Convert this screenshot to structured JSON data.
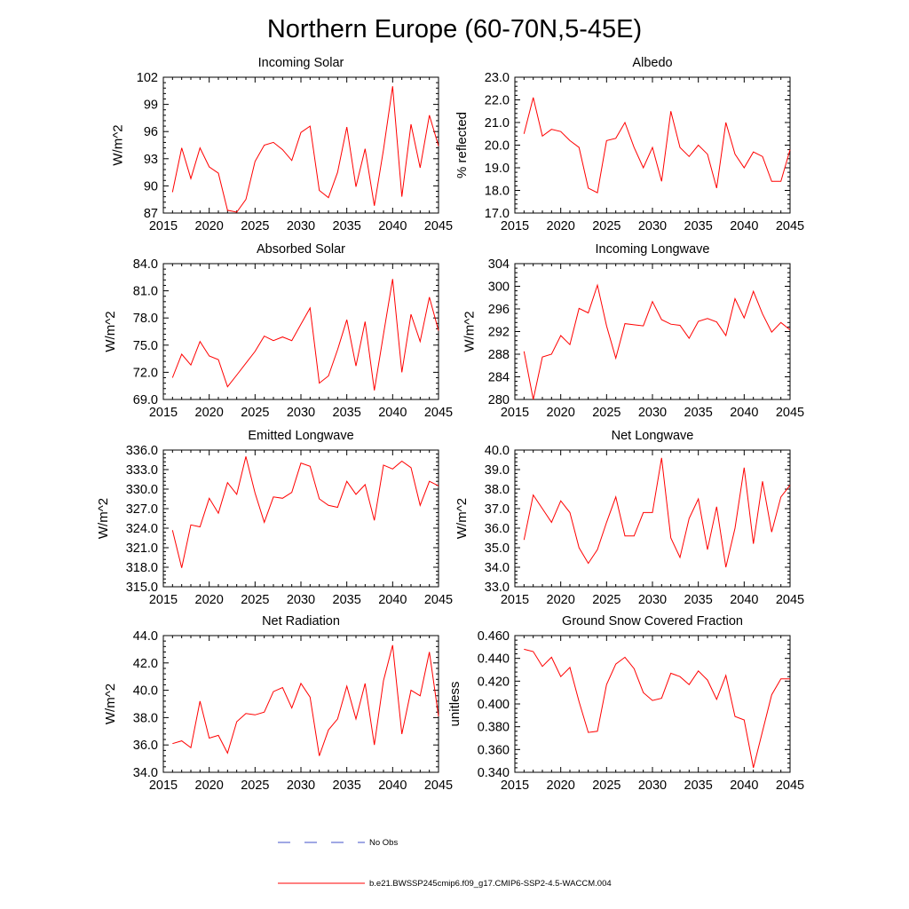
{
  "figure": {
    "title": "Northern Europe (60-70N,5-45E)",
    "series_color": "#ff0000",
    "obs_color": "#4050c8"
  },
  "legend": {
    "entries": [
      {
        "label": "No Obs",
        "style": "dashed",
        "color": "#4050c8"
      },
      {
        "label": "b.e21.BWSSP245cmip6.f09_g17.CMIP6-SSP2-4.5-WACCM.004",
        "style": "solid",
        "color": "#ff0000"
      }
    ]
  },
  "chart_data": [
    {
      "type": "line",
      "title": "Incoming Solar",
      "ylabel": "W/m^2",
      "xlim": [
        2015,
        2045
      ],
      "ylim": [
        87,
        102
      ],
      "yticks": [
        "87",
        "90",
        "93",
        "96",
        "99",
        "102"
      ],
      "xticks": [
        "2015",
        "2020",
        "2025",
        "2030",
        "2035",
        "2040",
        "2045"
      ],
      "series": [
        {
          "name": "b.e21.BWSSP245cmip6.f09_g17.CMIP6-SSP2-4.5-WACCM.004",
          "x": [
            2016,
            2017,
            2018,
            2019,
            2020,
            2021,
            2022,
            2023,
            2024,
            2025,
            2026,
            2027,
            2028,
            2029,
            2030,
            2031,
            2032,
            2033,
            2034,
            2035,
            2036,
            2037,
            2038,
            2039,
            2040,
            2041,
            2042,
            2043,
            2044,
            2045
          ],
          "values": [
            89.3,
            94.2,
            90.8,
            94.2,
            92.1,
            91.4,
            87.3,
            87.1,
            88.5,
            92.7,
            94.5,
            94.8,
            94.0,
            92.8,
            95.9,
            96.6,
            89.5,
            88.7,
            91.5,
            96.5,
            89.9,
            94.1,
            87.8,
            94.0,
            101.0,
            88.8,
            96.8,
            92.0,
            97.8,
            94.4
          ]
        }
      ]
    },
    {
      "type": "line",
      "title": "Albedo",
      "ylabel": "% reflected",
      "xlim": [
        2015,
        2045
      ],
      "ylim": [
        17.0,
        23.0
      ],
      "yticks": [
        "17.0",
        "18.0",
        "19.0",
        "20.0",
        "21.0",
        "22.0",
        "23.0"
      ],
      "xticks": [
        "2015",
        "2020",
        "2025",
        "2030",
        "2035",
        "2040",
        "2045"
      ],
      "series": [
        {
          "name": "b.e21.BWSSP245cmip6.f09_g17.CMIP6-SSP2-4.5-WACCM.004",
          "x": [
            2016,
            2017,
            2018,
            2019,
            2020,
            2021,
            2022,
            2023,
            2024,
            2025,
            2026,
            2027,
            2028,
            2029,
            2030,
            2031,
            2032,
            2033,
            2034,
            2035,
            2036,
            2037,
            2038,
            2039,
            2040,
            2041,
            2042,
            2043,
            2044,
            2045
          ],
          "values": [
            20.5,
            22.1,
            20.4,
            20.7,
            20.6,
            20.2,
            19.9,
            18.1,
            17.9,
            20.2,
            20.3,
            21.0,
            19.9,
            19.0,
            19.9,
            18.4,
            21.5,
            19.9,
            19.5,
            20.0,
            19.6,
            18.1,
            21.0,
            19.6,
            19.0,
            19.7,
            19.5,
            18.4,
            18.4,
            19.8
          ]
        }
      ]
    },
    {
      "type": "line",
      "title": "Absorbed Solar",
      "ylabel": "W/m^2",
      "xlim": [
        2015,
        2045
      ],
      "ylim": [
        69.0,
        84.0
      ],
      "yticks": [
        "69.0",
        "72.0",
        "75.0",
        "78.0",
        "81.0",
        "84.0"
      ],
      "xticks": [
        "2015",
        "2020",
        "2025",
        "2030",
        "2035",
        "2040",
        "2045"
      ],
      "series": [
        {
          "name": "b.e21.BWSSP245cmip6.f09_g17.CMIP6-SSP2-4.5-WACCM.004",
          "x": [
            2016,
            2017,
            2018,
            2019,
            2020,
            2021,
            2022,
            2023,
            2024,
            2025,
            2026,
            2027,
            2028,
            2029,
            2030,
            2031,
            2032,
            2033,
            2034,
            2035,
            2036,
            2037,
            2038,
            2039,
            2040,
            2041,
            2042,
            2043,
            2044,
            2045
          ],
          "values": [
            71.4,
            74.0,
            72.8,
            75.4,
            73.8,
            73.4,
            70.4,
            71.7,
            73.0,
            74.3,
            76.0,
            75.5,
            75.9,
            75.5,
            77.3,
            79.1,
            70.8,
            71.6,
            74.5,
            77.8,
            72.7,
            77.6,
            70.0,
            76.2,
            82.3,
            72.0,
            78.4,
            75.4,
            80.3,
            76.6
          ]
        }
      ]
    },
    {
      "type": "line",
      "title": "Incoming Longwave",
      "ylabel": "W/m^2",
      "xlim": [
        2015,
        2045
      ],
      "ylim": [
        280,
        304
      ],
      "yticks": [
        "280",
        "284",
        "288",
        "292",
        "296",
        "300",
        "304"
      ],
      "xticks": [
        "2015",
        "2020",
        "2025",
        "2030",
        "2035",
        "2040",
        "2045"
      ],
      "series": [
        {
          "name": "b.e21.BWSSP245cmip6.f09_g17.CMIP6-SSP2-4.5-WACCM.004",
          "x": [
            2016,
            2017,
            2018,
            2019,
            2020,
            2021,
            2022,
            2023,
            2024,
            2025,
            2026,
            2027,
            2028,
            2029,
            2030,
            2031,
            2032,
            2033,
            2034,
            2035,
            2036,
            2037,
            2038,
            2039,
            2040,
            2041,
            2042,
            2043,
            2044,
            2045
          ],
          "values": [
            288.5,
            280.0,
            287.5,
            288.0,
            291.3,
            289.7,
            296.1,
            295.3,
            300.2,
            293.0,
            287.3,
            293.4,
            293.2,
            293.0,
            297.3,
            294.1,
            293.3,
            293.1,
            290.8,
            293.8,
            294.3,
            293.7,
            291.3,
            297.8,
            294.4,
            299.1,
            295.1,
            291.9,
            293.6,
            292.3
          ]
        }
      ]
    },
    {
      "type": "line",
      "title": "Emitted Longwave",
      "ylabel": "W/m^2",
      "xlim": [
        2015,
        2045
      ],
      "ylim": [
        315.0,
        336.0
      ],
      "yticks": [
        "315.0",
        "318.0",
        "321.0",
        "324.0",
        "327.0",
        "330.0",
        "333.0",
        "336.0"
      ],
      "xticks": [
        "2015",
        "2020",
        "2025",
        "2030",
        "2035",
        "2040",
        "2045"
      ],
      "series": [
        {
          "name": "b.e21.BWSSP245cmip6.f09_g17.CMIP6-SSP2-4.5-WACCM.004",
          "x": [
            2016,
            2017,
            2018,
            2019,
            2020,
            2021,
            2022,
            2023,
            2024,
            2025,
            2026,
            2027,
            2028,
            2029,
            2030,
            2031,
            2032,
            2033,
            2034,
            2035,
            2036,
            2037,
            2038,
            2039,
            2040,
            2041,
            2042,
            2043,
            2044,
            2045
          ],
          "values": [
            323.7,
            317.9,
            324.5,
            324.2,
            328.6,
            326.3,
            331.0,
            329.2,
            335.0,
            329.4,
            324.9,
            328.8,
            328.6,
            329.5,
            334.0,
            333.5,
            328.5,
            327.5,
            327.2,
            331.2,
            329.2,
            330.7,
            325.2,
            333.7,
            333.1,
            334.3,
            333.3,
            327.5,
            331.2,
            330.5
          ]
        }
      ]
    },
    {
      "type": "line",
      "title": "Net Longwave",
      "ylabel": "W/m^2",
      "xlim": [
        2015,
        2045
      ],
      "ylim": [
        33.0,
        40.0
      ],
      "yticks": [
        "33.0",
        "34.0",
        "35.0",
        "36.0",
        "37.0",
        "38.0",
        "39.0",
        "40.0"
      ],
      "xticks": [
        "2015",
        "2020",
        "2025",
        "2030",
        "2035",
        "2040",
        "2045"
      ],
      "series": [
        {
          "name": "b.e21.BWSSP245cmip6.f09_g17.CMIP6-SSP2-4.5-WACCM.004",
          "x": [
            2016,
            2017,
            2018,
            2019,
            2020,
            2021,
            2022,
            2023,
            2024,
            2025,
            2026,
            2027,
            2028,
            2029,
            2030,
            2031,
            2032,
            2033,
            2034,
            2035,
            2036,
            2037,
            2038,
            2039,
            2040,
            2041,
            2042,
            2043,
            2044,
            2045
          ],
          "values": [
            35.4,
            37.7,
            37.0,
            36.3,
            37.4,
            36.8,
            35.0,
            34.2,
            34.9,
            36.3,
            37.6,
            35.6,
            35.6,
            36.8,
            36.8,
            39.6,
            35.5,
            34.5,
            36.5,
            37.5,
            34.9,
            37.1,
            34.0,
            36.0,
            39.1,
            35.2,
            38.4,
            35.8,
            37.6,
            38.2
          ]
        }
      ]
    },
    {
      "type": "line",
      "title": "Net Radiation",
      "ylabel": "W/m^2",
      "xlim": [
        2015,
        2045
      ],
      "ylim": [
        34.0,
        44.0
      ],
      "yticks": [
        "34.0",
        "36.0",
        "38.0",
        "40.0",
        "42.0",
        "44.0"
      ],
      "xticks": [
        "2015",
        "2020",
        "2025",
        "2030",
        "2035",
        "2040",
        "2045"
      ],
      "series": [
        {
          "name": "b.e21.BWSSP245cmip6.f09_g17.CMIP6-SSP2-4.5-WACCM.004",
          "x": [
            2016,
            2017,
            2018,
            2019,
            2020,
            2021,
            2022,
            2023,
            2024,
            2025,
            2026,
            2027,
            2028,
            2029,
            2030,
            2031,
            2032,
            2033,
            2034,
            2035,
            2036,
            2037,
            2038,
            2039,
            2040,
            2041,
            2042,
            2043,
            2044,
            2045
          ],
          "values": [
            36.1,
            36.3,
            35.8,
            39.2,
            36.5,
            36.7,
            35.4,
            37.7,
            38.3,
            38.2,
            38.4,
            39.9,
            40.2,
            38.7,
            40.5,
            39.5,
            35.2,
            37.1,
            37.9,
            40.3,
            37.9,
            40.5,
            36.0,
            40.7,
            43.3,
            36.8,
            40.0,
            39.6,
            42.8,
            38.1
          ]
        }
      ]
    },
    {
      "type": "line",
      "title": "Ground Snow Covered Fraction",
      "ylabel": "unitless",
      "xlim": [
        2015,
        2045
      ],
      "ylim": [
        0.34,
        0.46
      ],
      "yticks": [
        "0.340",
        "0.360",
        "0.380",
        "0.400",
        "0.420",
        "0.440",
        "0.460"
      ],
      "xticks": [
        "2015",
        "2020",
        "2025",
        "2030",
        "2035",
        "2040",
        "2045"
      ],
      "series": [
        {
          "name": "b.e21.BWSSP245cmip6.f09_g17.CMIP6-SSP2-4.5-WACCM.004",
          "x": [
            2016,
            2017,
            2018,
            2019,
            2020,
            2021,
            2022,
            2023,
            2024,
            2025,
            2026,
            2027,
            2028,
            2029,
            2030,
            2031,
            2032,
            2033,
            2034,
            2035,
            2036,
            2037,
            2038,
            2039,
            2040,
            2041,
            2042,
            2043,
            2044,
            2045
          ],
          "values": [
            0.448,
            0.446,
            0.433,
            0.441,
            0.424,
            0.432,
            0.402,
            0.375,
            0.376,
            0.417,
            0.435,
            0.441,
            0.431,
            0.41,
            0.403,
            0.405,
            0.427,
            0.424,
            0.417,
            0.429,
            0.421,
            0.404,
            0.425,
            0.389,
            0.386,
            0.344,
            0.376,
            0.408,
            0.422,
            0.422
          ]
        }
      ]
    }
  ]
}
